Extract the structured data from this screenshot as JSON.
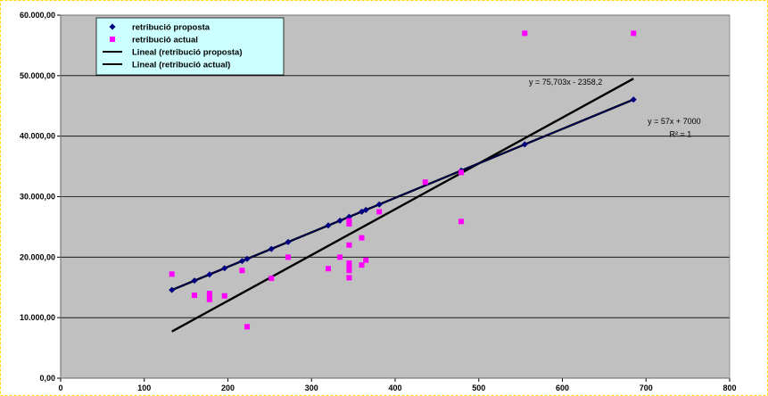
{
  "chart_data": {
    "type": "scatter",
    "xlim": [
      0,
      800
    ],
    "ylim": [
      0,
      60000
    ],
    "x_ticks": [
      0,
      100,
      200,
      300,
      400,
      500,
      600,
      700,
      800
    ],
    "x_tick_labels": [
      "0",
      "100",
      "200",
      "300",
      "400",
      "500",
      "600",
      "700",
      "800"
    ],
    "y_ticks": [
      0,
      10000,
      20000,
      30000,
      40000,
      50000,
      60000
    ],
    "y_tick_labels": [
      "0,00",
      "10.000,00",
      "20.000,00",
      "30.000,00",
      "40.000,00",
      "50.000,00",
      "60.000,00"
    ],
    "grid": "horizontal",
    "legend_position": "top-left",
    "colors": {
      "plot_background": "#c0c0c0",
      "legend_background": "#ccffff",
      "proposta": "#000080",
      "actual": "#ff00ff",
      "trendline": "#000000",
      "outer_border": "#ffd700"
    },
    "series": [
      {
        "name": "retribució proposta",
        "marker": "diamond",
        "color": "#000080",
        "points": [
          [
            133,
            14581
          ],
          [
            160,
            16120
          ],
          [
            178,
            17146
          ],
          [
            196,
            18172
          ],
          [
            217,
            19369
          ],
          [
            223,
            19711
          ],
          [
            252,
            21364
          ],
          [
            272,
            22504
          ],
          [
            320,
            25240
          ],
          [
            334,
            26038
          ],
          [
            345,
            26665
          ],
          [
            360,
            27520
          ],
          [
            365,
            27805
          ],
          [
            381,
            28717
          ],
          [
            479,
            34303
          ],
          [
            555,
            38635
          ],
          [
            685,
            46045
          ]
        ]
      },
      {
        "name": "retribució actual",
        "marker": "square",
        "color": "#ff00ff",
        "points": [
          [
            133,
            17200
          ],
          [
            160,
            13700
          ],
          [
            178,
            14000
          ],
          [
            178,
            13400
          ],
          [
            178,
            13000
          ],
          [
            196,
            13600
          ],
          [
            217,
            17800
          ],
          [
            223,
            8500
          ],
          [
            252,
            16500
          ],
          [
            272,
            20000
          ],
          [
            320,
            18100
          ],
          [
            334,
            20000
          ],
          [
            345,
            25500
          ],
          [
            345,
            26000
          ],
          [
            345,
            22000
          ],
          [
            345,
            19000
          ],
          [
            345,
            18500
          ],
          [
            345,
            17800
          ],
          [
            345,
            16600
          ],
          [
            360,
            23200
          ],
          [
            360,
            18700
          ],
          [
            365,
            19500
          ],
          [
            381,
            27500
          ],
          [
            436,
            32400
          ],
          [
            479,
            34000
          ],
          [
            479,
            25900
          ],
          [
            555,
            57000
          ],
          [
            685,
            57000
          ]
        ]
      },
      {
        "name": "Lineal (retribució proposta)",
        "type": "line",
        "color": "#000000",
        "points": [
          [
            133,
            14581
          ],
          [
            685,
            46045
          ]
        ]
      },
      {
        "name": "Lineal (retribució actual)",
        "type": "line",
        "color": "#000000",
        "points": [
          [
            133,
            7711
          ],
          [
            685,
            49499
          ]
        ]
      }
    ],
    "annotations": [
      {
        "text": "y = 75,703x - 2358,2",
        "x": 560,
        "y": 48500
      },
      {
        "text": "y = 57x + 7000",
        "x": 702,
        "y": 42000
      },
      {
        "text": "R² = 1",
        "x": 728,
        "y": 39900
      }
    ]
  }
}
